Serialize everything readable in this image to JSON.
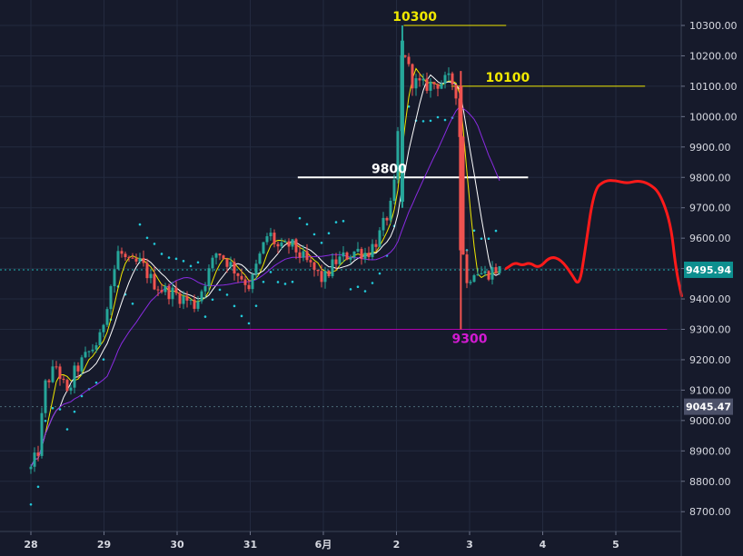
{
  "chart_data": {
    "type": "candlestick",
    "title": "",
    "xlabel": "",
    "ylabel": "",
    "ylim": [
      8650,
      10380
    ],
    "y_ticks": [
      8700,
      8800,
      8900,
      9000,
      9100,
      9200,
      9300,
      9400,
      9500,
      9600,
      9700,
      9800,
      9900,
      10000,
      10100,
      10200,
      10300
    ],
    "y_tick_labels": [
      "8700.00",
      "8800.00",
      "8900.00",
      "9000.00",
      "9100.00",
      "9200.00",
      "9300.00",
      "9400.00",
      "9500.00",
      "9600.00",
      "9700.00",
      "9800.00",
      "9900.00",
      "10000.00",
      "10100.00",
      "10200.00",
      "10300.00"
    ],
    "x_ticks": [
      {
        "label": "28",
        "day": 0
      },
      {
        "label": "29",
        "day": 1
      },
      {
        "label": "30",
        "day": 2
      },
      {
        "label": "31",
        "day": 3
      },
      {
        "label": "6月",
        "day": 4
      },
      {
        "label": "2",
        "day": 5
      },
      {
        "label": "3",
        "day": 6
      },
      {
        "label": "4",
        "day": 7
      },
      {
        "label": "5",
        "day": 8
      }
    ],
    "price_path": [
      [
        0.0,
        8840
      ],
      [
        0.1,
        8900
      ],
      [
        0.2,
        9120
      ],
      [
        0.35,
        9180
      ],
      [
        0.5,
        9080
      ],
      [
        0.6,
        9160
      ],
      [
        0.75,
        9210
      ],
      [
        0.95,
        9270
      ],
      [
        1.05,
        9400
      ],
      [
        1.2,
        9560
      ],
      [
        1.35,
        9510
      ],
      [
        1.5,
        9520
      ],
      [
        1.65,
        9460
      ],
      [
        1.8,
        9430
      ],
      [
        1.95,
        9420
      ],
      [
        2.1,
        9400
      ],
      [
        2.25,
        9380
      ],
      [
        2.4,
        9470
      ],
      [
        2.55,
        9560
      ],
      [
        2.7,
        9520
      ],
      [
        2.85,
        9480
      ],
      [
        3.0,
        9440
      ],
      [
        3.1,
        9520
      ],
      [
        3.25,
        9620
      ],
      [
        3.4,
        9560
      ],
      [
        3.55,
        9580
      ],
      [
        3.7,
        9540
      ],
      [
        3.85,
        9500
      ],
      [
        4.0,
        9460
      ],
      [
        4.15,
        9520
      ],
      [
        4.3,
        9540
      ],
      [
        4.45,
        9560
      ],
      [
        4.6,
        9550
      ],
      [
        4.75,
        9600
      ],
      [
        4.85,
        9660
      ],
      [
        4.95,
        9720
      ],
      [
        5.0,
        9850
      ],
      [
        5.08,
        10250
      ],
      [
        5.2,
        10120
      ],
      [
        5.35,
        10100
      ],
      [
        5.55,
        10110
      ],
      [
        5.75,
        10120
      ],
      [
        5.85,
        10060
      ],
      [
        5.9,
        9600
      ],
      [
        5.95,
        9440
      ],
      [
        6.05,
        9500
      ],
      [
        6.2,
        9480
      ],
      [
        6.35,
        9500
      ],
      [
        6.45,
        9490
      ]
    ],
    "forecast": [
      [
        6.5,
        9500
      ],
      [
        6.62,
        9520
      ],
      [
        6.72,
        9510
      ],
      [
        6.82,
        9520
      ],
      [
        6.95,
        9500
      ],
      [
        7.1,
        9540
      ],
      [
        7.25,
        9530
      ],
      [
        7.4,
        9480
      ],
      [
        7.5,
        9440
      ],
      [
        7.58,
        9560
      ],
      [
        7.7,
        9760
      ],
      [
        7.85,
        9790
      ],
      [
        8.0,
        9790
      ],
      [
        8.15,
        9780
      ],
      [
        8.3,
        9790
      ],
      [
        8.45,
        9780
      ],
      [
        8.6,
        9750
      ],
      [
        8.75,
        9650
      ],
      [
        8.82,
        9500
      ],
      [
        8.9,
        9410
      ]
    ],
    "lines": [
      {
        "label": "10300",
        "value": 10300,
        "from": 5.1,
        "to": 6.5,
        "color": "#f0e800"
      },
      {
        "label": "10100",
        "value": 10100,
        "from": 5.75,
        "to": 8.4,
        "color": "#f0e800"
      },
      {
        "label": "9800",
        "value": 9800,
        "from": 3.65,
        "to": 6.8,
        "color": "#ffffff"
      },
      {
        "label": "9300",
        "value": 9300,
        "from": 2.15,
        "to": 8.7,
        "color": "#b000b0"
      }
    ],
    "price_badges": [
      {
        "label": "9495.94",
        "value": 9495.94,
        "bg": "#0d8f8f",
        "fg": "#ffffff",
        "line": "#20b5b5"
      },
      {
        "label": "9045.47",
        "value": 9045.47,
        "bg": "#4b5068",
        "fg": "#ffffff",
        "line": "#4b6a78"
      }
    ],
    "colors": {
      "background": "#161a2b",
      "grid": "#232a3f",
      "up": "#26a69a",
      "down": "#ef5350",
      "forecast": "#ff1a1a",
      "sar": "#22c9d9",
      "ma_fast": "#f0e800",
      "ma_mid": "#ffffff",
      "ma_slow": "#8a2be2"
    },
    "grid": true
  }
}
